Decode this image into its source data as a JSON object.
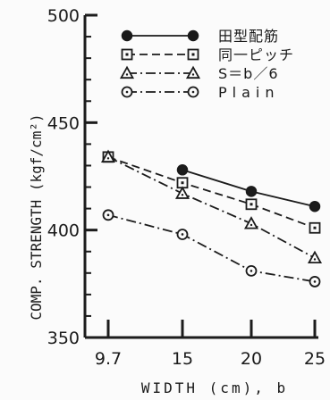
{
  "chart_data": {
    "type": "line",
    "title": "",
    "xlabel": "WIDTH (cm), b",
    "ylabel": "COMP. STRENGTH (kgf/cm²)",
    "categories": [
      "9.7",
      "15",
      "20",
      "25"
    ],
    "x": [
      9.7,
      15,
      20,
      25
    ],
    "ylim": [
      350,
      500
    ],
    "yticks": [
      350,
      400,
      450,
      500
    ],
    "ytick_labels": [
      "350",
      "400",
      "450",
      "500"
    ],
    "grid": false,
    "legend_position": "top-right",
    "series": [
      {
        "name": "田型配筋",
        "marker": "filled-circle",
        "line": "solid",
        "points": [
          [
            15,
            428
          ],
          [
            20,
            418
          ],
          [
            25,
            411
          ]
        ]
      },
      {
        "name": "同一ピッチ",
        "marker": "open-square",
        "line": "dashed",
        "points": [
          [
            9.7,
            434
          ],
          [
            15,
            422
          ],
          [
            20,
            412
          ],
          [
            25,
            401
          ]
        ]
      },
      {
        "name": "S＝b／6",
        "marker": "open-triangle",
        "line": "dash-dot",
        "points": [
          [
            9.7,
            434
          ],
          [
            15,
            417
          ],
          [
            20,
            403
          ],
          [
            25,
            387
          ]
        ]
      },
      {
        "name": "Plain",
        "marker": "open-circle",
        "line": "dash-dot",
        "points": [
          [
            9.7,
            407
          ],
          [
            15,
            398
          ],
          [
            20,
            381
          ],
          [
            25,
            376
          ]
        ]
      }
    ]
  }
}
